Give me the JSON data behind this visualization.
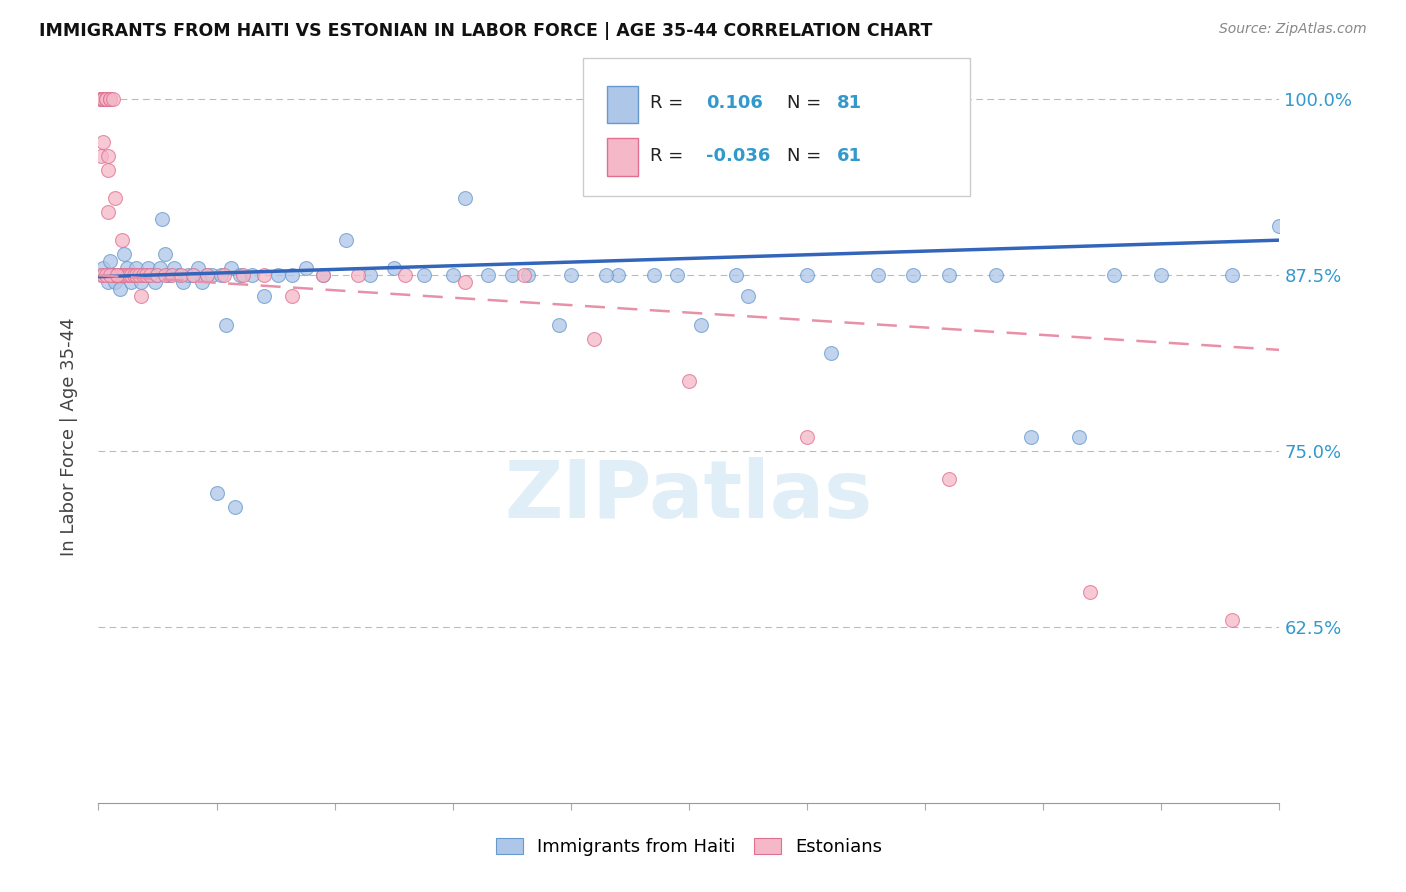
{
  "title": "IMMIGRANTS FROM HAITI VS ESTONIAN IN LABOR FORCE | AGE 35-44 CORRELATION CHART",
  "source": "Source: ZipAtlas.com",
  "ylabel": "In Labor Force | Age 35-44",
  "xmin": 0.0,
  "xmax": 0.5,
  "ymin": 0.5,
  "ymax": 1.02,
  "yticks": [
    0.625,
    0.75,
    0.875,
    1.0
  ],
  "ytick_labels": [
    "62.5%",
    "75.0%",
    "87.5%",
    "100.0%"
  ],
  "haiti_color": "#aec6e8",
  "estonian_color": "#f4b8c8",
  "haiti_edge_color": "#6699cc",
  "estonian_edge_color": "#e07090",
  "haiti_line_color": "#3366bb",
  "estonian_line_color": "#e890a8",
  "haiti_x": [
    0.002,
    0.003,
    0.004,
    0.005,
    0.006,
    0.007,
    0.008,
    0.009,
    0.01,
    0.011,
    0.012,
    0.013,
    0.014,
    0.015,
    0.016,
    0.017,
    0.018,
    0.019,
    0.02,
    0.021,
    0.022,
    0.023,
    0.024,
    0.025,
    0.026,
    0.027,
    0.028,
    0.029,
    0.03,
    0.032,
    0.034,
    0.036,
    0.038,
    0.04,
    0.042,
    0.044,
    0.046,
    0.048,
    0.052,
    0.056,
    0.06,
    0.065,
    0.07,
    0.076,
    0.082,
    0.088,
    0.095,
    0.105,
    0.115,
    0.125,
    0.138,
    0.15,
    0.165,
    0.182,
    0.2,
    0.22,
    0.245,
    0.27,
    0.3,
    0.33,
    0.36,
    0.395,
    0.43,
    0.155,
    0.175,
    0.195,
    0.215,
    0.235,
    0.255,
    0.275,
    0.31,
    0.345,
    0.38,
    0.415,
    0.45,
    0.48,
    0.5,
    0.05,
    0.054,
    0.058
  ],
  "haiti_y": [
    0.88,
    0.875,
    0.87,
    0.885,
    0.875,
    0.87,
    0.875,
    0.865,
    0.875,
    0.89,
    0.88,
    0.875,
    0.87,
    0.875,
    0.88,
    0.875,
    0.87,
    0.875,
    0.875,
    0.88,
    0.875,
    0.875,
    0.87,
    0.875,
    0.88,
    0.915,
    0.89,
    0.875,
    0.875,
    0.88,
    0.875,
    0.87,
    0.875,
    0.875,
    0.88,
    0.87,
    0.875,
    0.875,
    0.875,
    0.88,
    0.875,
    0.875,
    0.86,
    0.875,
    0.875,
    0.88,
    0.875,
    0.9,
    0.875,
    0.88,
    0.875,
    0.875,
    0.875,
    0.875,
    0.875,
    0.875,
    0.875,
    0.875,
    0.875,
    0.875,
    0.875,
    0.76,
    0.875,
    0.93,
    0.875,
    0.84,
    0.875,
    0.875,
    0.84,
    0.86,
    0.82,
    0.875,
    0.875,
    0.76,
    0.875,
    0.875,
    0.91,
    0.72,
    0.84,
    0.71
  ],
  "estonian_x": [
    0.001,
    0.001,
    0.001,
    0.002,
    0.002,
    0.002,
    0.003,
    0.003,
    0.003,
    0.004,
    0.004,
    0.005,
    0.005,
    0.006,
    0.006,
    0.007,
    0.007,
    0.008,
    0.009,
    0.01,
    0.01,
    0.011,
    0.012,
    0.013,
    0.014,
    0.015,
    0.016,
    0.017,
    0.018,
    0.019,
    0.02,
    0.022,
    0.025,
    0.028,
    0.031,
    0.001,
    0.001,
    0.002,
    0.002,
    0.003,
    0.004,
    0.005,
    0.035,
    0.04,
    0.046,
    0.053,
    0.061,
    0.07,
    0.082,
    0.095,
    0.11,
    0.13,
    0.155,
    0.18,
    0.21,
    0.25,
    0.3,
    0.36,
    0.42,
    0.48,
    0.008
  ],
  "estonian_y": [
    1.0,
    1.0,
    1.0,
    1.0,
    1.0,
    1.0,
    1.0,
    1.0,
    1.0,
    0.95,
    0.92,
    1.0,
    1.0,
    1.0,
    0.875,
    0.875,
    0.93,
    0.875,
    0.875,
    0.875,
    0.9,
    0.875,
    0.875,
    0.875,
    0.875,
    0.875,
    0.875,
    0.875,
    0.86,
    0.875,
    0.875,
    0.875,
    0.875,
    0.875,
    0.875,
    0.96,
    0.875,
    0.97,
    0.875,
    0.875,
    0.96,
    0.875,
    0.875,
    0.875,
    0.875,
    0.875,
    0.875,
    0.875,
    0.86,
    0.875,
    0.875,
    0.875,
    0.87,
    0.875,
    0.83,
    0.8,
    0.76,
    0.73,
    0.65,
    0.63,
    0.875
  ]
}
